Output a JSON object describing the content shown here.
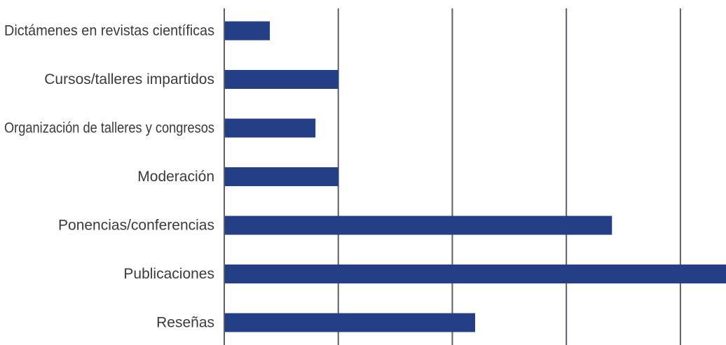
{
  "chart_data": {
    "type": "bar",
    "orientation": "horizontal",
    "categories": [
      "Dictámenes en revistas científicas",
      "Cursos/talleres impartidos",
      "Organización de talleres y congresos",
      "Moderación",
      "Ponencias/conferencias",
      "Publicaciones",
      "Reseñas"
    ],
    "values": [
      2,
      5,
      4,
      5,
      17,
      22,
      11
    ],
    "xlim": [
      0,
      22
    ],
    "gridline_values": [
      5,
      10,
      15,
      20
    ],
    "grid": true,
    "legend": "none",
    "title": "",
    "xlabel": "",
    "ylabel": "",
    "colors": {
      "bar": "#253f87",
      "grid": "#5a6068",
      "axis": "#5a6068",
      "label": "#3a3a3a"
    }
  }
}
